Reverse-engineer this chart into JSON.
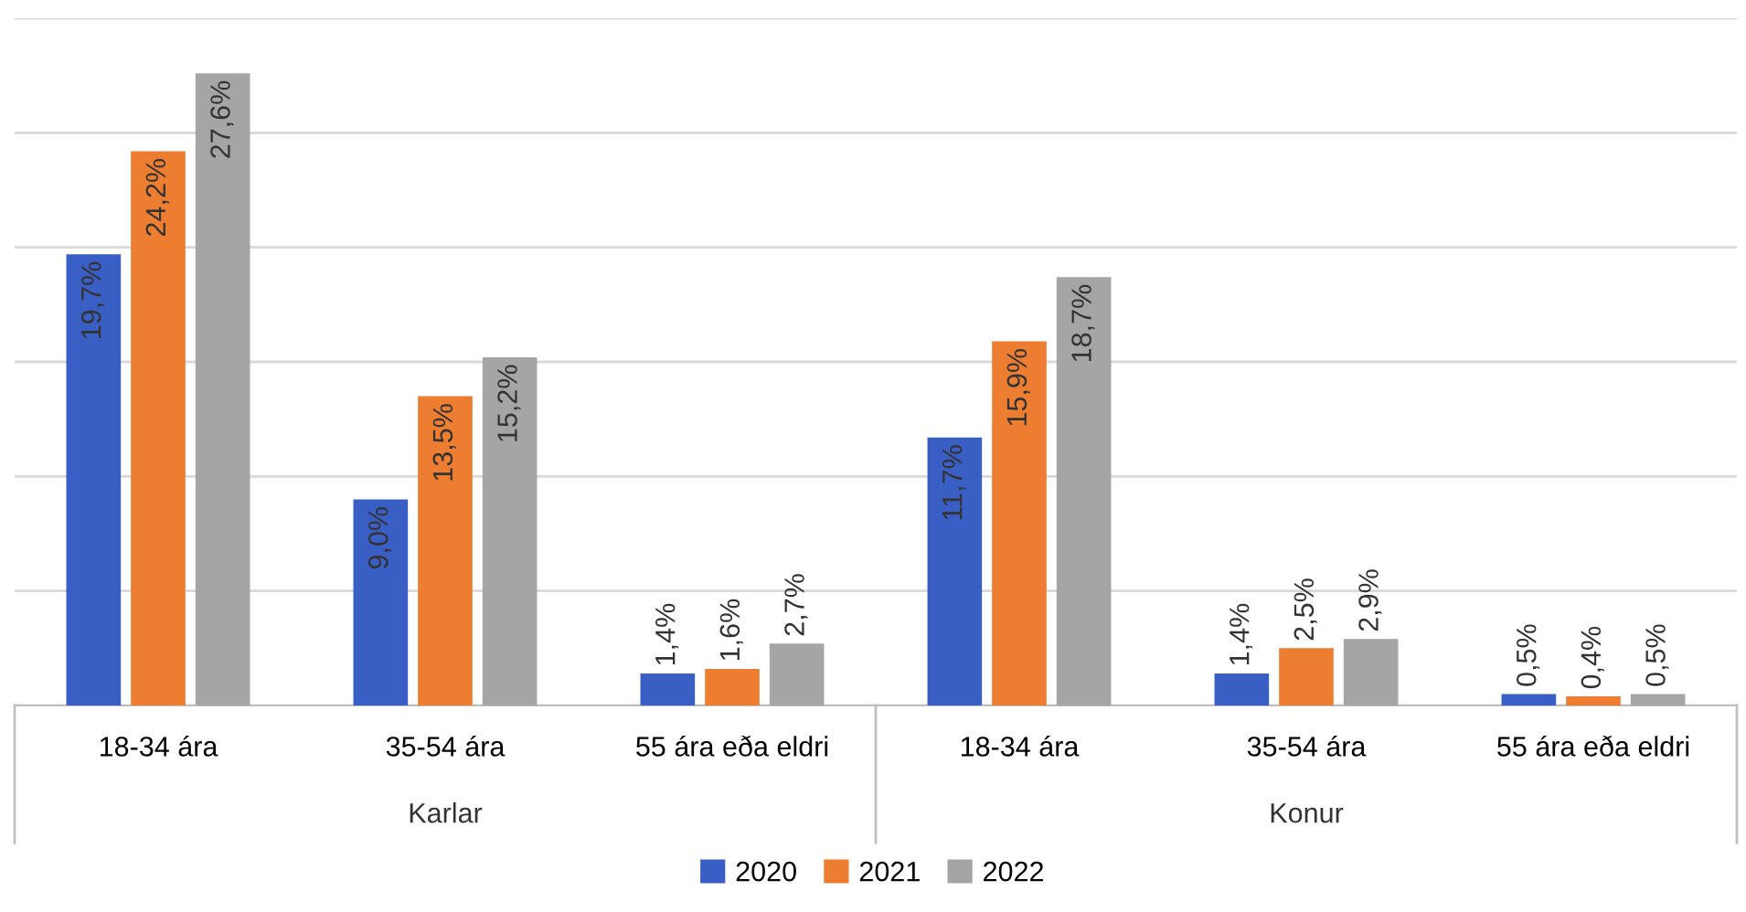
{
  "chart_data": {
    "type": "bar",
    "categories": [
      "18-34 ára",
      "35-54 ára",
      "55 ára eða eldri",
      "18-34 ára",
      "35-54 ára",
      "55 ára eða eldri"
    ],
    "series": [
      {
        "name": "2020",
        "color": "#3a5fc4",
        "values": [
          19.7,
          9.0,
          1.4,
          11.7,
          1.4,
          0.5
        ],
        "value_labels": [
          "19,7%",
          "9,0%",
          "1,4%",
          "11,7%",
          "1,4%",
          "0,5%"
        ]
      },
      {
        "name": "2021",
        "color": "#ed7d31",
        "values": [
          24.2,
          13.5,
          1.6,
          15.9,
          2.5,
          0.4
        ],
        "value_labels": [
          "24,2%",
          "13,5%",
          "1,6%",
          "15,9%",
          "2,5%",
          "0,4%"
        ]
      },
      {
        "name": "2022",
        "color": "#a5a5a5",
        "values": [
          27.6,
          15.2,
          2.7,
          18.7,
          2.9,
          0.5
        ],
        "value_labels": [
          "27,6%",
          "15,2%",
          "2,7%",
          "18,7%",
          "2,9%",
          "0,5%"
        ]
      }
    ],
    "annotations": [
      "Karlar",
      "Konur"
    ],
    "ylim": [
      0,
      30
    ],
    "yticks": [
      {
        "value": 0,
        "label": null
      },
      {
        "value": 5,
        "label": null
      },
      {
        "value": 10,
        "label": null
      },
      {
        "value": 15,
        "label": null
      },
      {
        "value": 20,
        "label": null
      },
      {
        "value": 25,
        "label": null
      },
      {
        "value": 30,
        "label": null
      }
    ],
    "tick_labels": "x",
    "grid": "y",
    "legend": "bottom"
  }
}
